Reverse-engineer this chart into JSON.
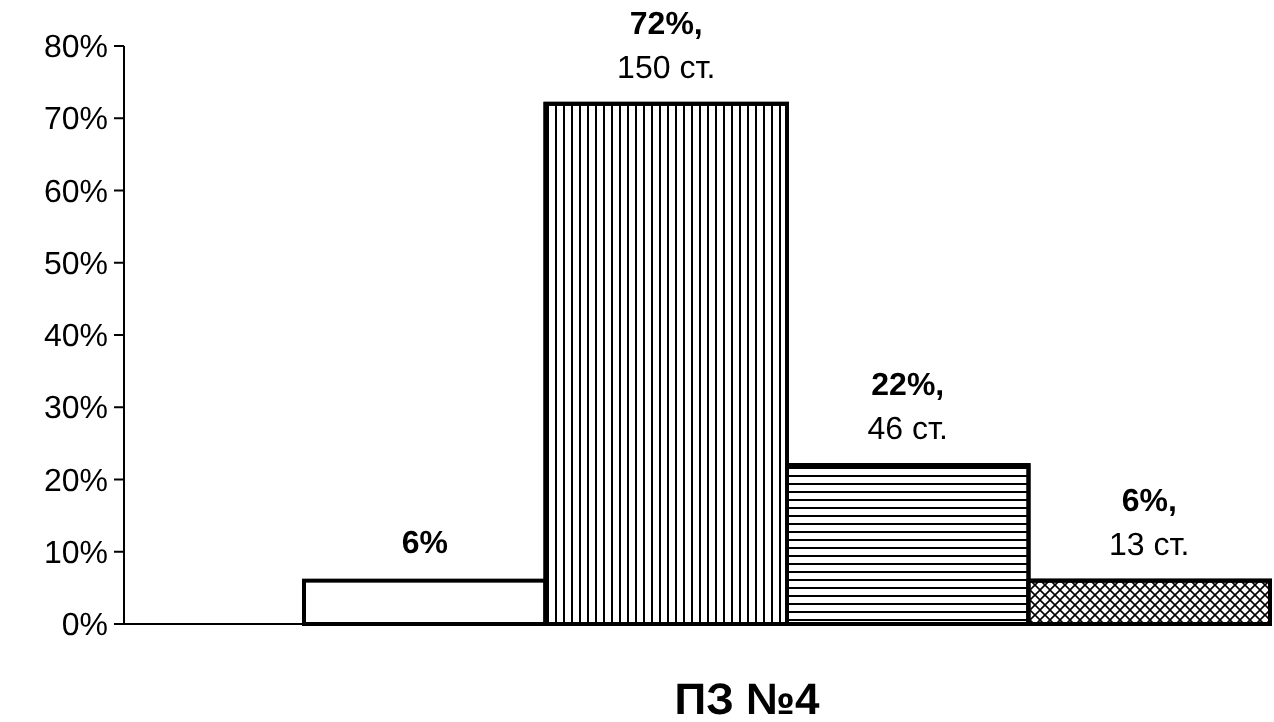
{
  "chart_data": {
    "type": "bar",
    "xlabel": "ПЗ №4",
    "categories": [
      null,
      null,
      null,
      null
    ],
    "values": [
      6,
      72,
      22,
      6
    ],
    "colors": [
      "#ffffff",
      "#ffffff",
      "#ffffff",
      "#ffffff"
    ],
    "value_labels": [
      "6%",
      "72%, 150 ст.",
      "22%, 46 ст.",
      "6%, 13 ст."
    ],
    "ylim": [
      0,
      80
    ],
    "yticks": [
      {
        "value": 0,
        "label": "0%"
      },
      {
        "value": 10,
        "label": "10%"
      },
      {
        "value": 20,
        "label": "20%"
      },
      {
        "value": 30,
        "label": "30%"
      },
      {
        "value": 40,
        "label": "40%"
      },
      {
        "value": 50,
        "label": "50%"
      },
      {
        "value": 60,
        "label": "60%"
      },
      {
        "value": 70,
        "label": "70%"
      },
      {
        "value": 80,
        "label": "80%"
      }
    ],
    "grid": false
  }
}
